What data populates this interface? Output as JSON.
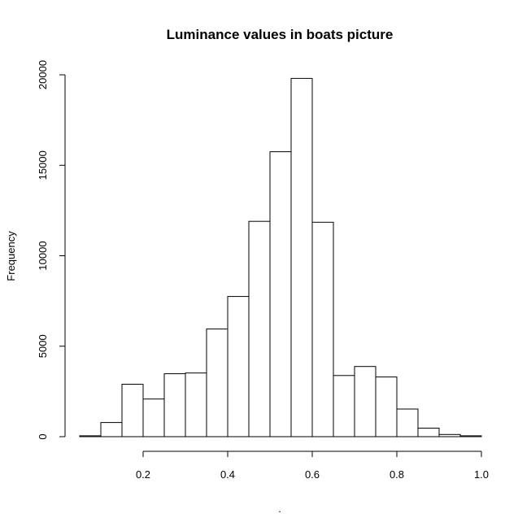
{
  "chart_data": {
    "type": "bar",
    "title": "Luminance values in boats picture",
    "xlabel": ".",
    "ylabel": "Frequency",
    "bin_width": 0.05,
    "bins_start": [
      0.05,
      0.1,
      0.15,
      0.2,
      0.25,
      0.3,
      0.35,
      0.4,
      0.45,
      0.5,
      0.55,
      0.6,
      0.65,
      0.7,
      0.75,
      0.8,
      0.85,
      0.9,
      0.95
    ],
    "values": [
      50,
      780,
      2900,
      2080,
      3480,
      3520,
      5950,
      7750,
      11900,
      15750,
      19800,
      11850,
      3380,
      3880,
      3300,
      1530,
      470,
      120,
      50
    ],
    "xlim": [
      0.05,
      1.0
    ],
    "ylim": [
      0,
      20000
    ],
    "x_ticks": [
      0.2,
      0.4,
      0.6,
      0.8,
      1.0
    ],
    "x_tick_labels": [
      "0.2",
      "0.4",
      "0.6",
      "0.8",
      "1.0"
    ],
    "y_ticks": [
      0,
      5000,
      10000,
      15000,
      20000
    ],
    "y_tick_labels": [
      "0",
      "5000",
      "10000",
      "15000",
      "20000"
    ],
    "grid": false,
    "bar_fill": "#ffffff",
    "bar_stroke": "#000000"
  }
}
